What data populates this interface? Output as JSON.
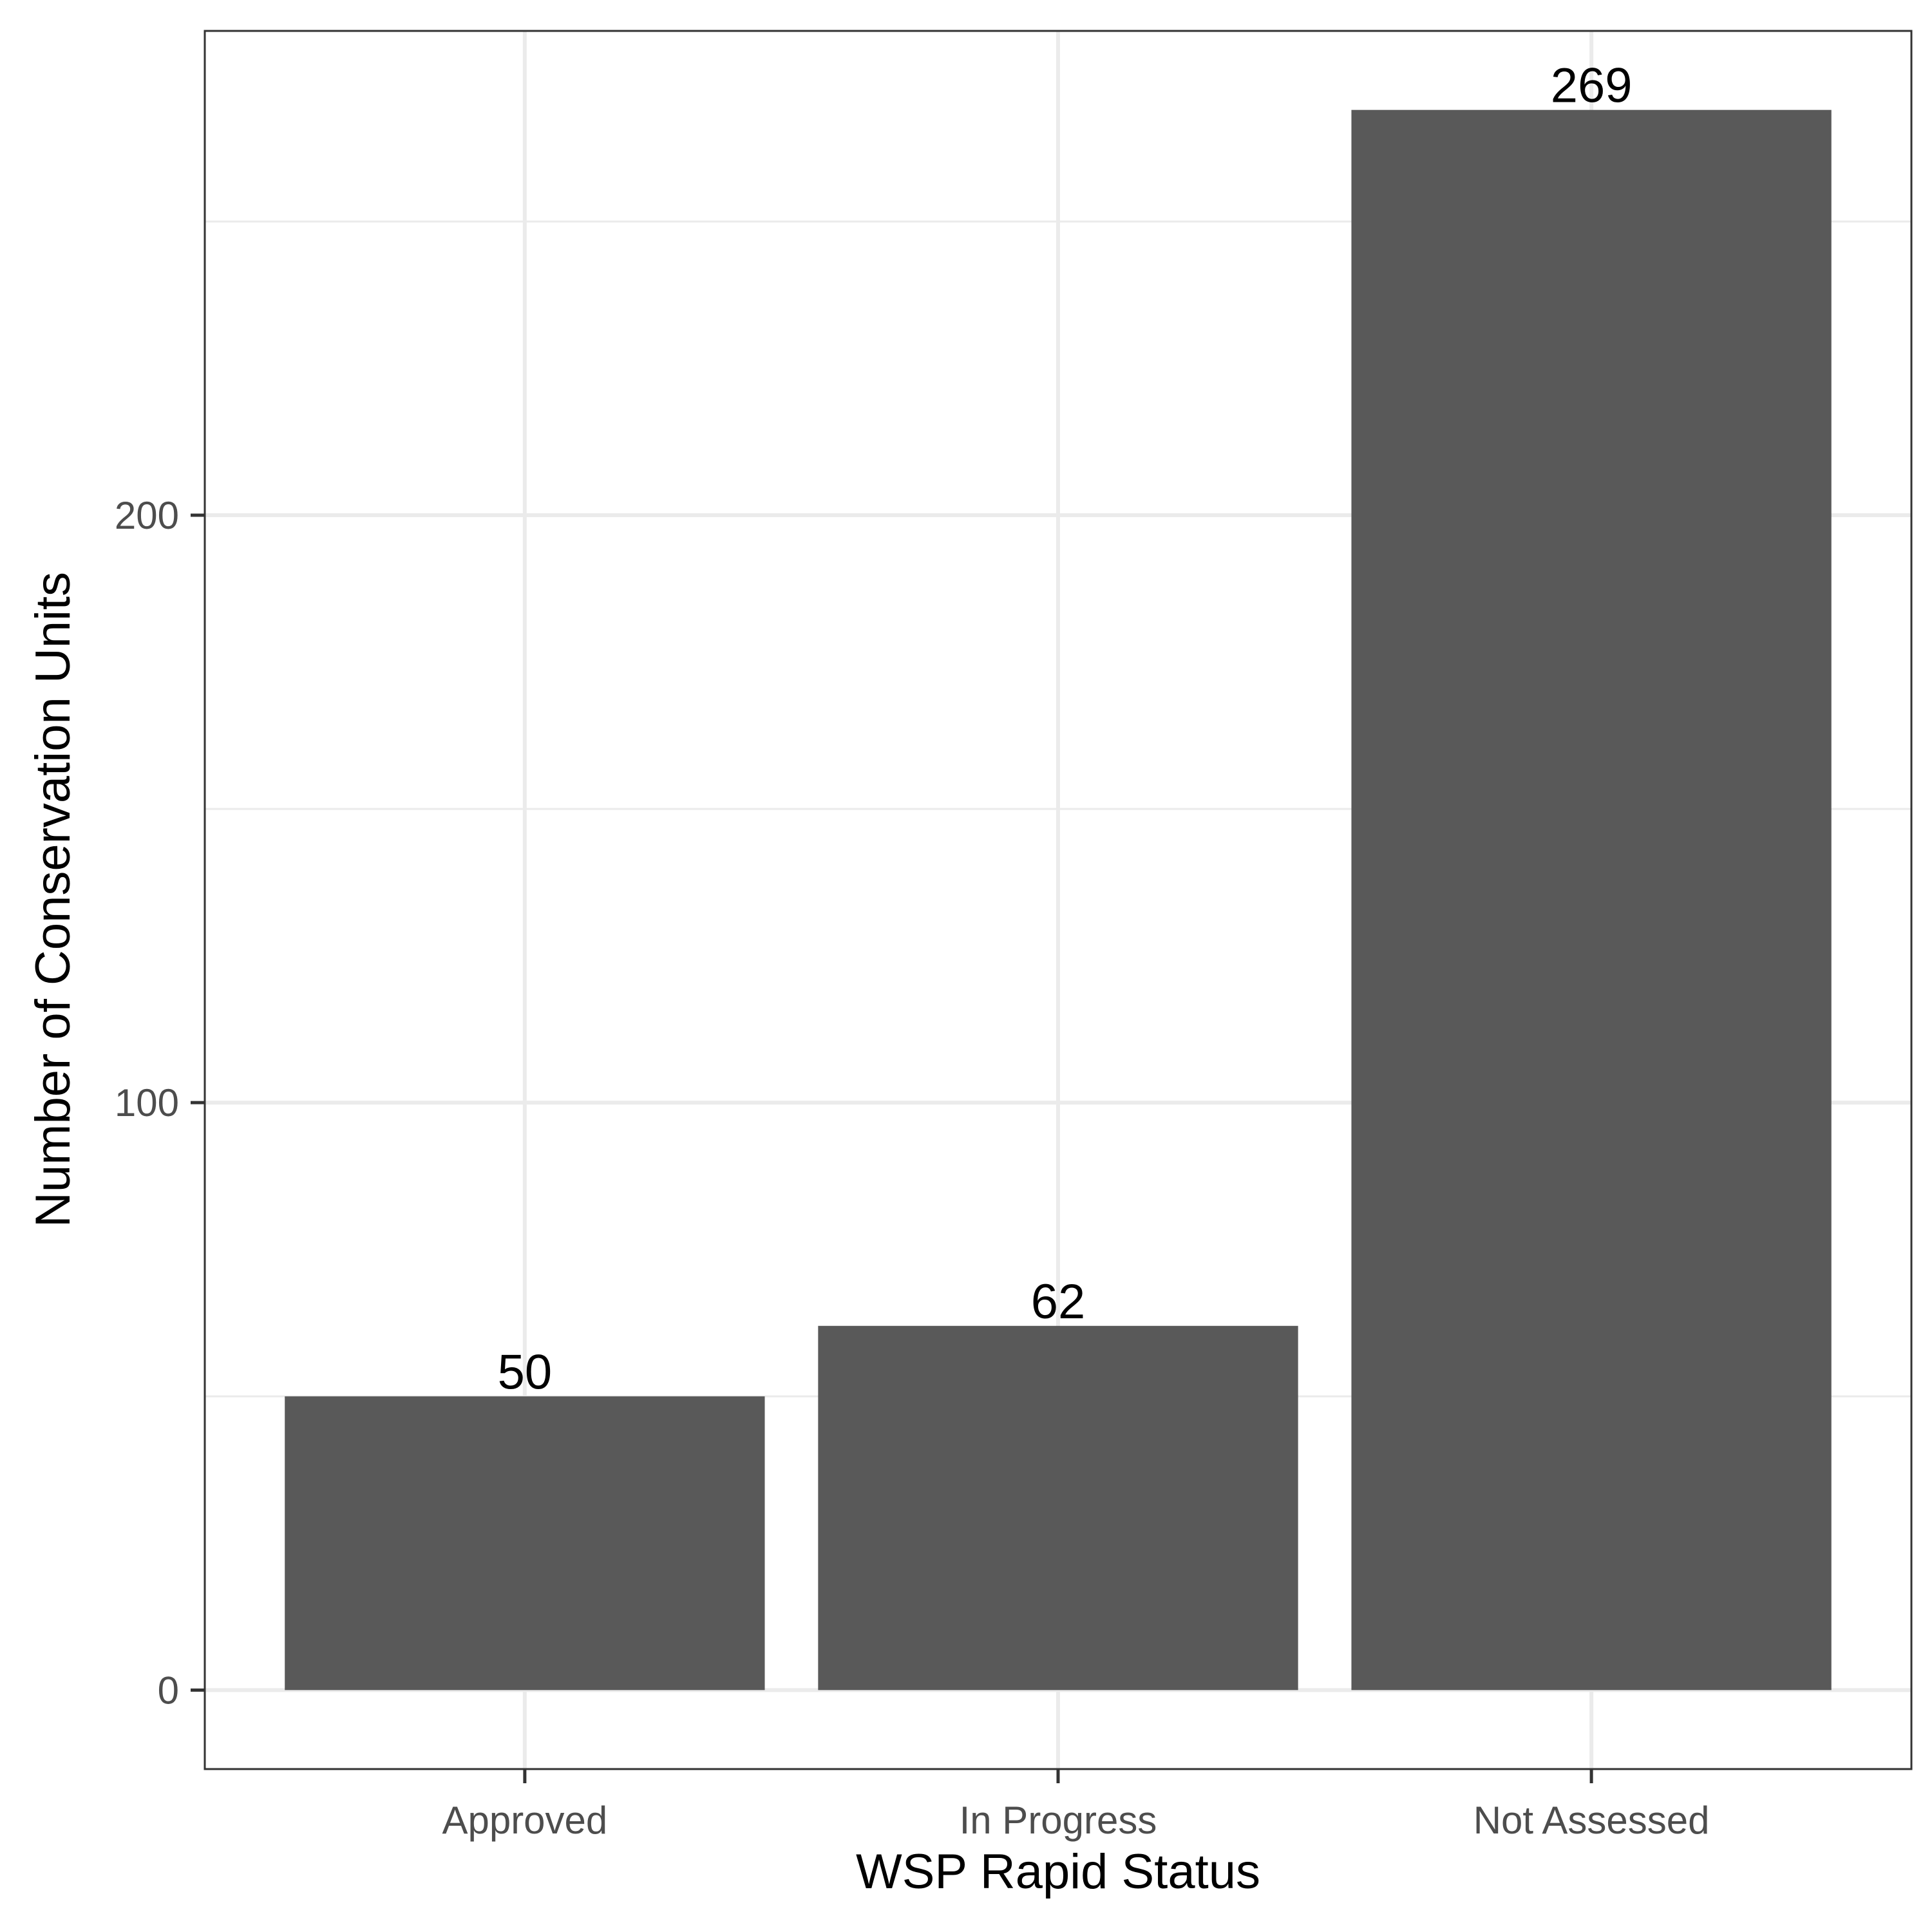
{
  "chart_data": {
    "type": "bar",
    "title": "",
    "xlabel": "WSP Rapid Status",
    "ylabel": "Number of Conservation Units",
    "categories": [
      "Approved",
      "In Progress",
      "Not Assessed"
    ],
    "values": [
      50,
      62,
      269
    ],
    "data_labels": [
      "50",
      "62",
      "269"
    ],
    "yticks": [
      0,
      100,
      200
    ],
    "ytick_labels": [
      "0",
      "100",
      "200"
    ],
    "ylim": [
      -13.45,
      282.45
    ],
    "grid": true,
    "legend": "none",
    "colors": {
      "bar": "#595959",
      "grid": "#ebebeb",
      "panel_border": "#333333"
    }
  }
}
